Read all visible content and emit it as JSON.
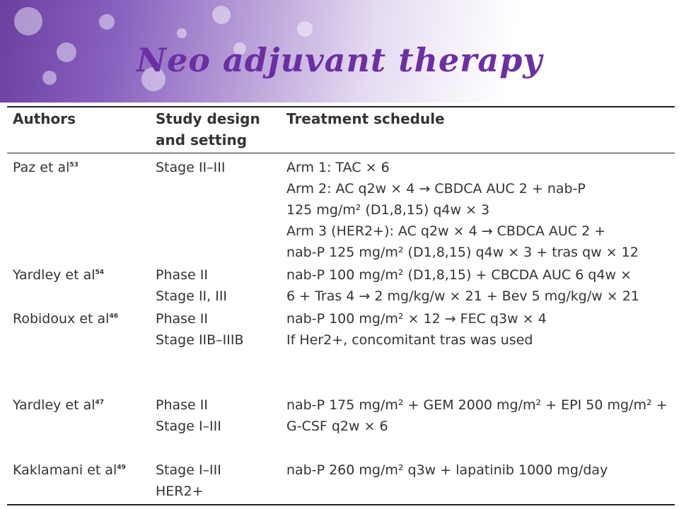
{
  "slide": {
    "title": "Neo adjuvant therapy"
  },
  "table": {
    "headers": [
      "Authors",
      "Study design\nand setting",
      "Treatment schedule"
    ],
    "header_design": [
      "Study design",
      "and setting"
    ],
    "rows": [
      {
        "author": "Paz et al",
        "ref": "53",
        "design": [
          "Stage II–III"
        ],
        "treatment": [
          "Arm 1: TAC × 6",
          "Arm 2: AC q2w × 4 → CBDCA AUC 2 + nab-P",
          "125 mg/m² (D1,8,15) q4w × 3",
          "Arm 3 (HER2+): AC q2w × 4 → CBDCA AUC 2 +",
          "nab-P 125 mg/m² (D1,8,15) q4w × 3 + tras qw × 12"
        ]
      },
      {
        "author": "Yardley et al",
        "ref": "54",
        "design": [
          "Phase II",
          "Stage II, III"
        ],
        "treatment": [
          "nab-P 100 mg/m² (D1,8,15) + CBCDA AUC 6 q4w ×",
          "6 + Tras 4 → 2 mg/kg/w × 21 + Bev 5 mg/kg/w × 21"
        ]
      },
      {
        "author": "Robidoux et al",
        "ref": "46",
        "design": [
          "Phase II",
          "Stage IIB–IIIB"
        ],
        "treatment": [
          "nab-P 100 mg/m² × 12 → FEC q3w × 4",
          "If Her2+, concomitant tras was used"
        ]
      },
      {
        "author": "Yardley et al",
        "ref": "47",
        "design": [
          "Phase II",
          "Stage I–III"
        ],
        "treatment": [
          "nab-P 175 mg/m² + GEM 2000 mg/m² + EPI 50 mg/m² +",
          "G-CSF q2w × 6"
        ]
      },
      {
        "author": "Kaklamani et al",
        "ref": "49",
        "design": [
          "Stage I–III",
          "HER2+"
        ],
        "treatment": [
          "nab-P 260 mg/m² q3w + lapatinib 1000 mg/day"
        ]
      }
    ]
  }
}
